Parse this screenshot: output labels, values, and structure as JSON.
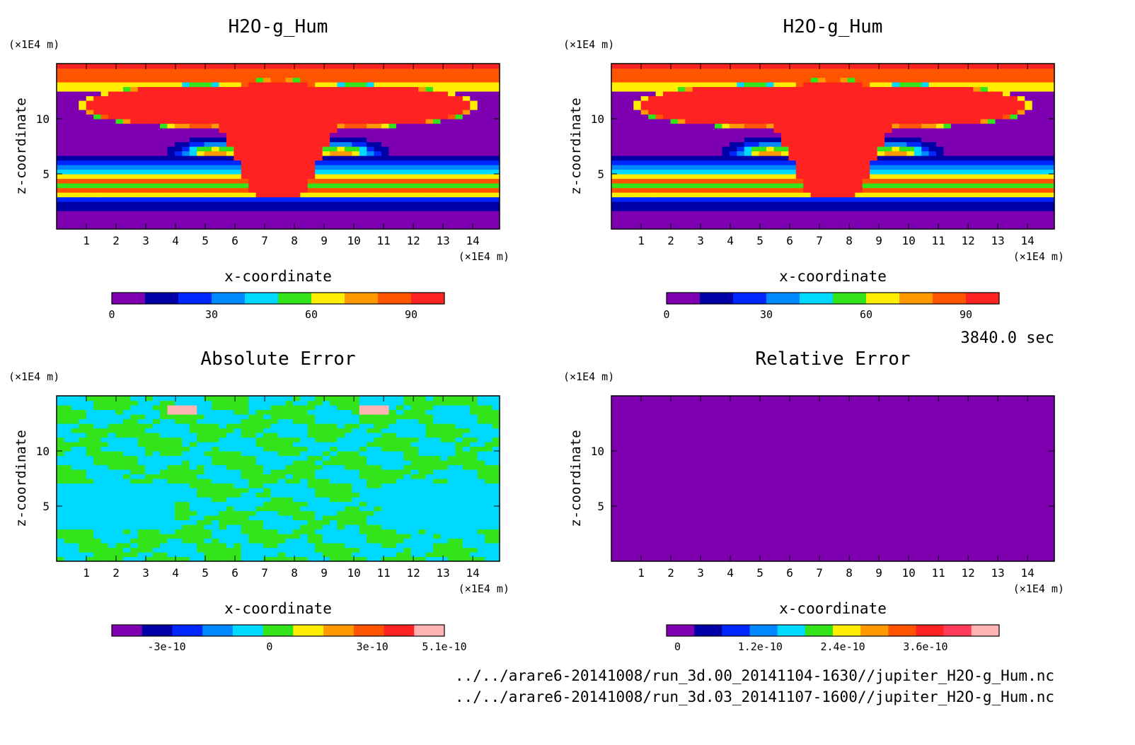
{
  "time_label": "3840.0 sec",
  "files": [
    "../../arare6-20141008/run_3d.00_20141104-1630//jupiter_H2O-g_Hum.nc",
    "../../arare6-20141008/run_3d.03_20141107-1600//jupiter_H2O-g_Hum.nc"
  ],
  "chart_data": [
    {
      "type": "heatmap",
      "title": "H2O-g_Hum",
      "xlabel": "x-coordinate",
      "ylabel": "z-coordinate",
      "x_unit": "(×1E4 m)",
      "y_unit": "(×1E4 m)",
      "xlim": [
        0,
        14.9
      ],
      "ylim": [
        0,
        15
      ],
      "xticks": [
        "1",
        "2",
        "3",
        "4",
        "5",
        "6",
        "7",
        "8",
        "9",
        "10",
        "11",
        "12",
        "13",
        "14"
      ],
      "yticks": [
        "5",
        "10"
      ],
      "pattern": "humidity",
      "colorbar": {
        "colors": [
          "#7f00b0",
          "#0000a6",
          "#0026ff",
          "#0088ff",
          "#00d9ff",
          "#33e41a",
          "#ffee00",
          "#ff9900",
          "#ff5500",
          "#ff2222"
        ],
        "tick_labels": [
          "0",
          "30",
          "60",
          "90"
        ],
        "tick_values": [
          0,
          30,
          60,
          90
        ],
        "range": [
          0,
          100
        ]
      }
    },
    {
      "type": "heatmap",
      "title": "H2O-g_Hum",
      "xlabel": "x-coordinate",
      "ylabel": "z-coordinate",
      "x_unit": "(×1E4 m)",
      "y_unit": "(×1E4 m)",
      "xlim": [
        0,
        14.9
      ],
      "ylim": [
        0,
        15
      ],
      "xticks": [
        "1",
        "2",
        "3",
        "4",
        "5",
        "6",
        "7",
        "8",
        "9",
        "10",
        "11",
        "12",
        "13",
        "14"
      ],
      "yticks": [
        "5",
        "10"
      ],
      "pattern": "humidity",
      "colorbar": {
        "colors": [
          "#7f00b0",
          "#0000a6",
          "#0026ff",
          "#0088ff",
          "#00d9ff",
          "#33e41a",
          "#ffee00",
          "#ff9900",
          "#ff5500",
          "#ff2222"
        ],
        "tick_labels": [
          "0",
          "30",
          "60",
          "90"
        ],
        "tick_values": [
          0,
          30,
          60,
          90
        ],
        "range": [
          0,
          100
        ]
      }
    },
    {
      "type": "heatmap",
      "title": "Absolute Error",
      "xlabel": "x-coordinate",
      "ylabel": "z-coordinate",
      "x_unit": "(×1E4 m)",
      "y_unit": "(×1E4 m)",
      "xlim": [
        0,
        14.9
      ],
      "ylim": [
        0,
        15
      ],
      "xticks": [
        "1",
        "2",
        "3",
        "4",
        "5",
        "6",
        "7",
        "8",
        "9",
        "10",
        "11",
        "12",
        "13",
        "14"
      ],
      "yticks": [
        "5",
        "10"
      ],
      "pattern": "abs_error",
      "colorbar": {
        "colors": [
          "#7f00b0",
          "#0000a6",
          "#0026ff",
          "#0088ff",
          "#00d9ff",
          "#33e41a",
          "#ffee00",
          "#ff9900",
          "#ff5500",
          "#ff2222",
          "#ffb3b3"
        ],
        "tick_labels": [
          "-3e-10",
          "0",
          "3e-10",
          "5.1e-10"
        ],
        "tick_values": [
          -3e-10,
          0,
          3e-10,
          5.1e-10
        ],
        "range": [
          -4.6e-10,
          5.1e-10
        ]
      }
    },
    {
      "type": "heatmap",
      "title": "Relative Error",
      "xlabel": "x-coordinate",
      "ylabel": "z-coordinate",
      "x_unit": "(×1E4 m)",
      "y_unit": "(×1E4 m)",
      "xlim": [
        0,
        14.9
      ],
      "ylim": [
        0,
        15
      ],
      "xticks": [
        "1",
        "2",
        "3",
        "4",
        "5",
        "6",
        "7",
        "8",
        "9",
        "10",
        "11",
        "12",
        "13",
        "14"
      ],
      "yticks": [
        "5",
        "10"
      ],
      "pattern": "rel_error",
      "colorbar": {
        "colors": [
          "#7f00b0",
          "#0000a6",
          "#0026ff",
          "#0088ff",
          "#00d9ff",
          "#33e41a",
          "#ffee00",
          "#ff9900",
          "#ff5500",
          "#ff2222",
          "#ff3b5b",
          "#ffb3b3"
        ],
        "tick_labels": [
          "0",
          "1.2e-10",
          "2.4e-10",
          "3.6e-10"
        ],
        "tick_values": [
          0,
          1.2e-10,
          2.4e-10,
          3.6e-10
        ],
        "range": [
          -1.6e-11,
          4.67e-10
        ]
      }
    }
  ]
}
